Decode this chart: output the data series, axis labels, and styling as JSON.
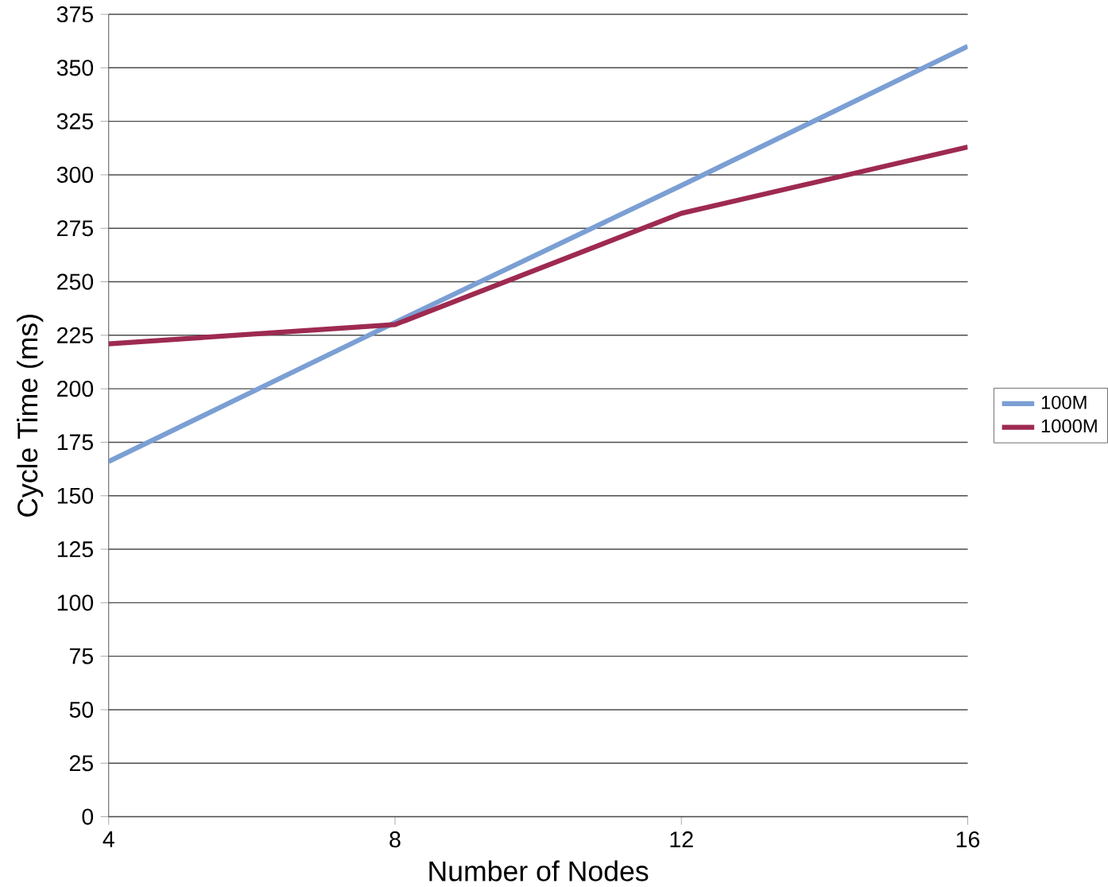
{
  "chart_data": {
    "type": "line",
    "xlabel": "Number of Nodes",
    "ylabel": "Cycle Time (ms)",
    "x": [
      4,
      8,
      12,
      16
    ],
    "series": [
      {
        "name": "100M",
        "color": "#7b9fd4",
        "values": [
          166,
          231,
          295,
          360
        ]
      },
      {
        "name": "1000M",
        "color": "#9e2a50",
        "values": [
          221,
          230,
          282,
          313
        ]
      }
    ],
    "xlim": [
      4,
      16
    ],
    "xticks": [
      4,
      8,
      12,
      16
    ],
    "ylim": [
      0,
      375
    ],
    "yticks": [
      0,
      25,
      50,
      75,
      100,
      125,
      150,
      175,
      200,
      225,
      250,
      275,
      300,
      325,
      350,
      375
    ],
    "grid": "y",
    "legend": "right",
    "marker": "none",
    "line_style": "solid"
  }
}
